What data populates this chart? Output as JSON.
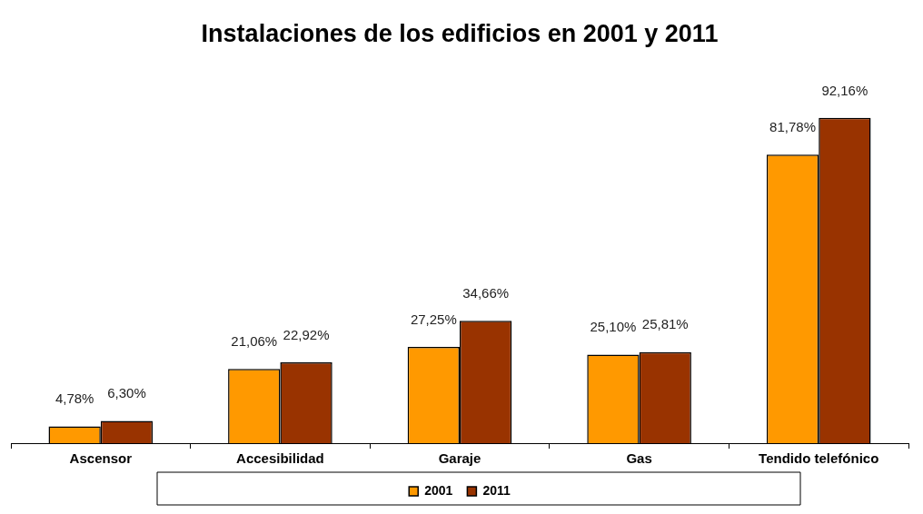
{
  "chart_data": {
    "type": "bar",
    "title": "Instalaciones de los edificios en 2001 y 2011",
    "categories": [
      "Ascensor",
      "Accesibilidad",
      "Garaje",
      "Gas",
      "Tendido telefónico"
    ],
    "series": [
      {
        "name": "2001",
        "color": "#ff9900",
        "values": [
          4.78,
          21.06,
          27.25,
          25.1,
          81.78
        ],
        "value_labels": [
          "4,78%",
          "21,06%",
          "27,25%",
          "25,10%",
          "81,78%"
        ]
      },
      {
        "name": "2011",
        "color": "#993300",
        "values": [
          6.3,
          22.92,
          34.66,
          25.81,
          92.16
        ],
        "value_labels": [
          "6,30%",
          "22,92%",
          "34,66%",
          "25,81%",
          "92,16%"
        ]
      }
    ],
    "legend": "bottom",
    "grid": false
  }
}
